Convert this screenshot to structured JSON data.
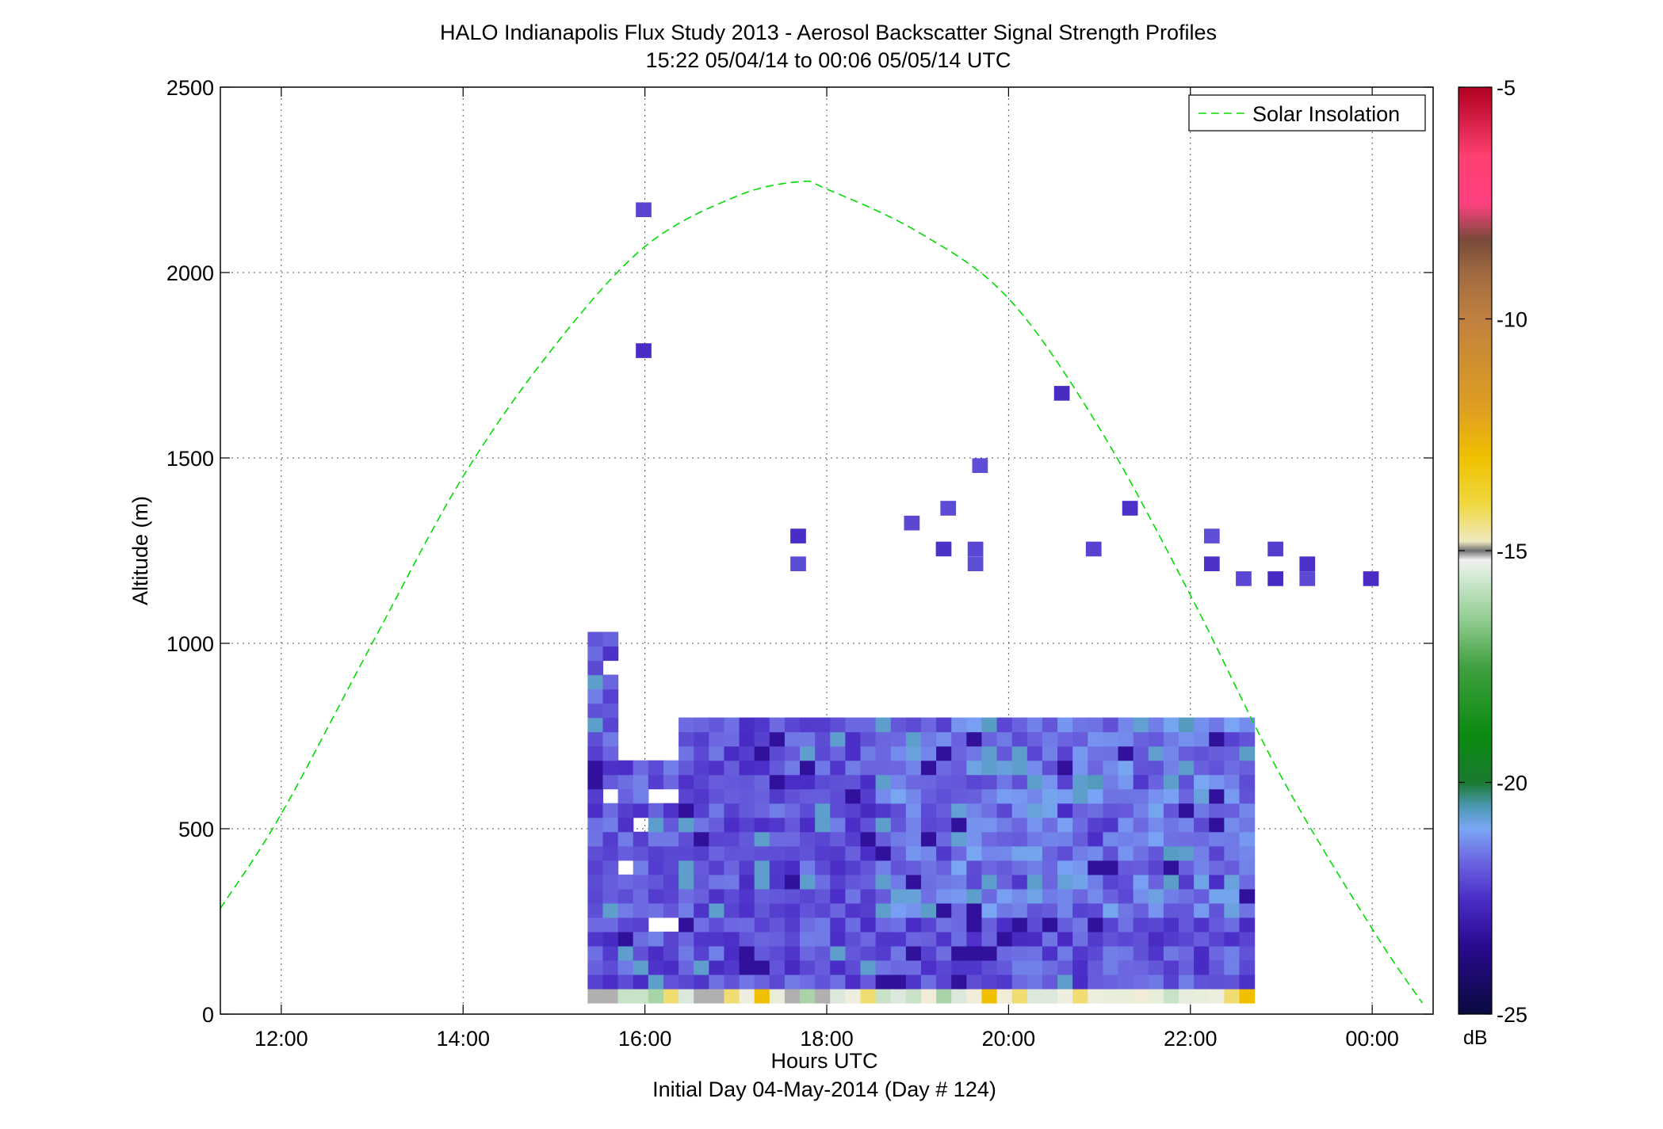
{
  "chart_data": {
    "type": "heatmap",
    "title": "HALO Indianapolis Flux Study 2013 - Aerosol Backscatter Signal Strength Profiles",
    "subtitle": "15:22 05/04/14 to 00:06 05/05/14  UTC",
    "xlabel": "Hours UTC",
    "xlabel2": "Initial Day 04-May-2014 (Day # 124)",
    "ylabel": "Altitude (m)",
    "xlim_hours": [
      11.33,
      24.67
    ],
    "ylim": [
      0,
      2500
    ],
    "x_ticks": [
      {
        "hour": 12,
        "label": "12:00"
      },
      {
        "hour": 14,
        "label": "14:00"
      },
      {
        "hour": 16,
        "label": "16:00"
      },
      {
        "hour": 18,
        "label": "18:00"
      },
      {
        "hour": 20,
        "label": "20:00"
      },
      {
        "hour": 22,
        "label": "22:00"
      },
      {
        "hour": 24,
        "label": "00:00"
      }
    ],
    "y_ticks": [
      0,
      500,
      1000,
      1500,
      2000,
      2500
    ],
    "y_tick_labels": [
      "0",
      "500",
      "1000",
      "1500",
      "2000",
      "2500"
    ],
    "grid": true,
    "legend": {
      "position": "top-right",
      "entries": [
        "Solar Insolation"
      ]
    },
    "colorbar": {
      "label": "dB",
      "range": [
        -25,
        -5
      ],
      "tick_values": [
        -5,
        -10,
        -15,
        -20,
        -25
      ],
      "tick_labels": [
        "-5",
        "-10",
        "-15",
        "-20",
        "-25"
      ],
      "stops": [
        {
          "value": -25,
          "color": "#0a0a40"
        },
        {
          "value": -23.5,
          "color": "#2a0a90"
        },
        {
          "value": -22.5,
          "color": "#4b2ec8"
        },
        {
          "value": -21.7,
          "color": "#6c66e0"
        },
        {
          "value": -21,
          "color": "#7aa6f5"
        },
        {
          "value": -20.5,
          "color": "#4a98b0"
        },
        {
          "value": -20,
          "color": "#1a7a30"
        },
        {
          "value": -19,
          "color": "#0a8a10"
        },
        {
          "value": -17.5,
          "color": "#40a040"
        },
        {
          "value": -16.5,
          "color": "#90cc90"
        },
        {
          "value": -15.5,
          "color": "#d8ecd8"
        },
        {
          "value": -15.2,
          "color": "#f0f0f0"
        },
        {
          "value": -15,
          "color": "#707070"
        },
        {
          "value": -14.8,
          "color": "#efe9c0"
        },
        {
          "value": -14,
          "color": "#f0d840"
        },
        {
          "value": -13,
          "color": "#f0c000"
        },
        {
          "value": -12,
          "color": "#e0a020"
        },
        {
          "value": -10,
          "color": "#c08040"
        },
        {
          "value": -9,
          "color": "#a06a40"
        },
        {
          "value": -8.3,
          "color": "#784a3a"
        },
        {
          "value": -7.5,
          "color": "#ff4080"
        },
        {
          "value": -6.5,
          "color": "#ff4070"
        },
        {
          "value": -5,
          "color": "#b00020"
        }
      ]
    },
    "solar_insolation": {
      "name": "Solar Insolation",
      "color": "#00dd00",
      "peak_hour": 17.7,
      "peak_altitude": 2245,
      "x_hours": [
        11.33,
        12,
        13,
        14,
        15,
        16,
        17,
        17.7,
        18,
        19,
        20,
        21,
        22,
        23,
        24,
        24.55
      ],
      "y_altitude": [
        285,
        540,
        1000,
        1450,
        1800,
        2070,
        2205,
        2245,
        2225,
        2110,
        1930,
        1580,
        1130,
        640,
        230,
        30
      ]
    },
    "heatmap": {
      "time_start_hour": 15.37,
      "time_step_hours": 0.1667,
      "num_columns": 44,
      "alt_start": 30,
      "alt_step": 38.5,
      "max_alt_index": 27,
      "cloud_top_indices": [
        26,
        26,
        17,
        17,
        17,
        17,
        20,
        20,
        20,
        20,
        20,
        20,
        20,
        20,
        20,
        20,
        20,
        20,
        20,
        20,
        20,
        20,
        20,
        20,
        20,
        20,
        20,
        20,
        20,
        20,
        20,
        20,
        20,
        20,
        20,
        20,
        20,
        20,
        20,
        20,
        20,
        20,
        20,
        20
      ],
      "isolated_cells": [
        {
          "hour": 15.9,
          "altitude": 2170
        },
        {
          "hour": 15.9,
          "altitude": 1790
        },
        {
          "hour": 20.5,
          "altitude": 1675
        },
        {
          "hour": 19.6,
          "altitude": 1480
        },
        {
          "hour": 19.25,
          "altitude": 1365
        },
        {
          "hour": 18.85,
          "altitude": 1325
        },
        {
          "hour": 21.25,
          "altitude": 1365
        },
        {
          "hour": 17.6,
          "altitude": 1290
        },
        {
          "hour": 22.15,
          "altitude": 1290
        },
        {
          "hour": 17.6,
          "altitude": 1215
        },
        {
          "hour": 20.85,
          "altitude": 1255
        },
        {
          "hour": 22.85,
          "altitude": 1255
        },
        {
          "hour": 19.2,
          "altitude": 1255
        },
        {
          "hour": 19.55,
          "altitude": 1255
        },
        {
          "hour": 19.55,
          "altitude": 1215
        },
        {
          "hour": 23.2,
          "altitude": 1215
        },
        {
          "hour": 22.15,
          "altitude": 1215
        },
        {
          "hour": 22.5,
          "altitude": 1175
        },
        {
          "hour": 22.85,
          "altitude": 1175
        },
        {
          "hour": 23.2,
          "altitude": 1175
        },
        {
          "hour": 23.9,
          "altitude": 1175
        }
      ]
    }
  }
}
